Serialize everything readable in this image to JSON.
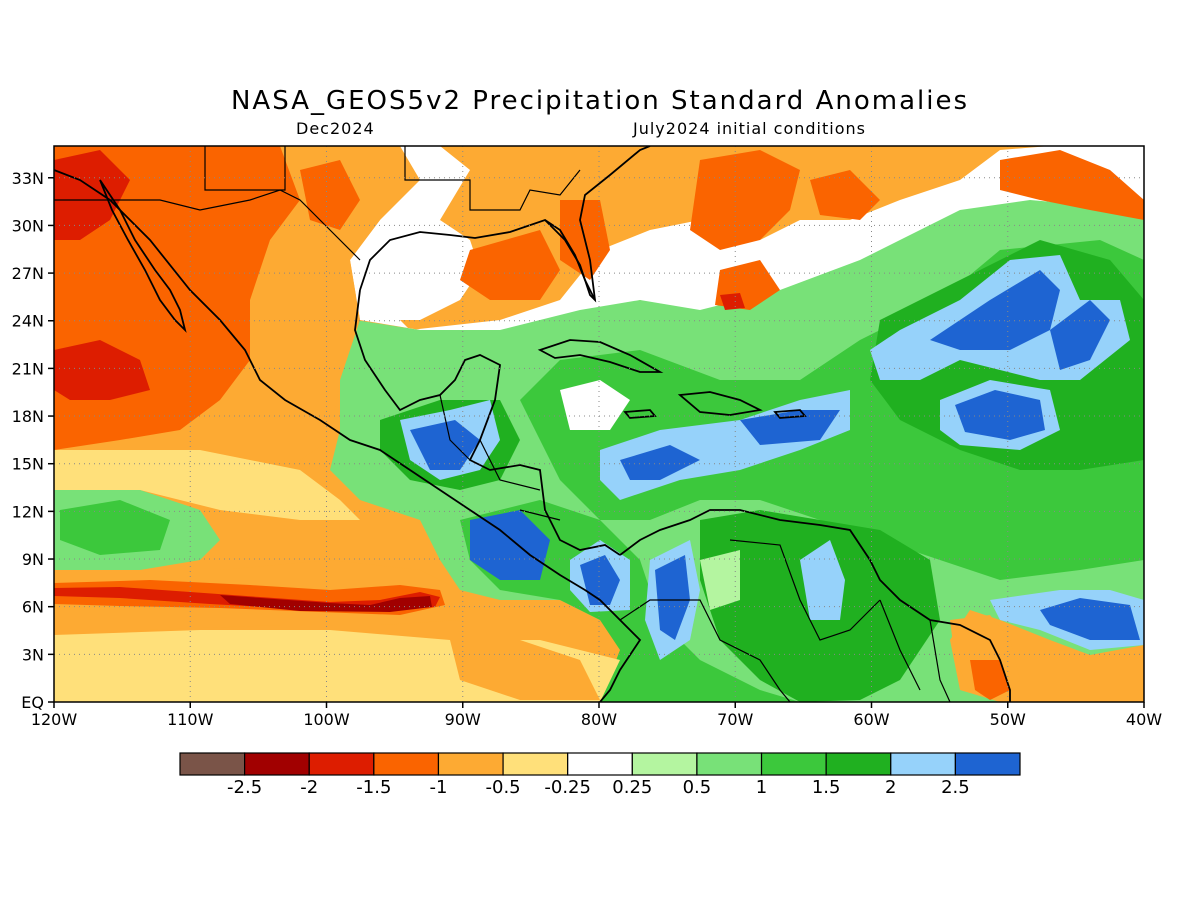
{
  "title": "NASA_GEOS5v2 Precipitation Standard Anomalies",
  "subtitle_left": "Dec2024",
  "subtitle_right": "July2024 initial conditions",
  "map": {
    "lon_range": [
      -120,
      -40
    ],
    "lat_range": [
      0,
      35
    ],
    "lon_ticks": [
      {
        "value": -120,
        "label": "120W"
      },
      {
        "value": -110,
        "label": "110W"
      },
      {
        "value": -100,
        "label": "100W"
      },
      {
        "value": -90,
        "label": "90W"
      },
      {
        "value": -80,
        "label": "80W"
      },
      {
        "value": -70,
        "label": "70W"
      },
      {
        "value": -60,
        "label": "60W"
      },
      {
        "value": -50,
        "label": "50W"
      },
      {
        "value": -40,
        "label": "40W"
      }
    ],
    "lat_ticks": [
      {
        "value": 0,
        "label": "EQ"
      },
      {
        "value": 3,
        "label": "3N"
      },
      {
        "value": 6,
        "label": "6N"
      },
      {
        "value": 9,
        "label": "9N"
      },
      {
        "value": 12,
        "label": "12N"
      },
      {
        "value": 15,
        "label": "15N"
      },
      {
        "value": 18,
        "label": "18N"
      },
      {
        "value": 21,
        "label": "21N"
      },
      {
        "value": 24,
        "label": "24N"
      },
      {
        "value": 27,
        "label": "27N"
      },
      {
        "value": 30,
        "label": "30N"
      },
      {
        "value": 33,
        "label": "33N"
      }
    ],
    "grid": true
  },
  "colorbar": {
    "colors": [
      "#7a5448",
      "#a10000",
      "#dd1d00",
      "#fa6400",
      "#fdaa33",
      "#ffe07a",
      "#ffffff",
      "#b4f5a0",
      "#78e178",
      "#3cc83c",
      "#20b020",
      "#96d2fa",
      "#1e64d2"
    ],
    "labels": [
      "-2.5",
      "-2",
      "-1.5",
      "-1",
      "-0.5",
      "-0.25",
      "0.25",
      "0.5",
      "1",
      "1.5",
      "2",
      "2.5"
    ]
  }
}
